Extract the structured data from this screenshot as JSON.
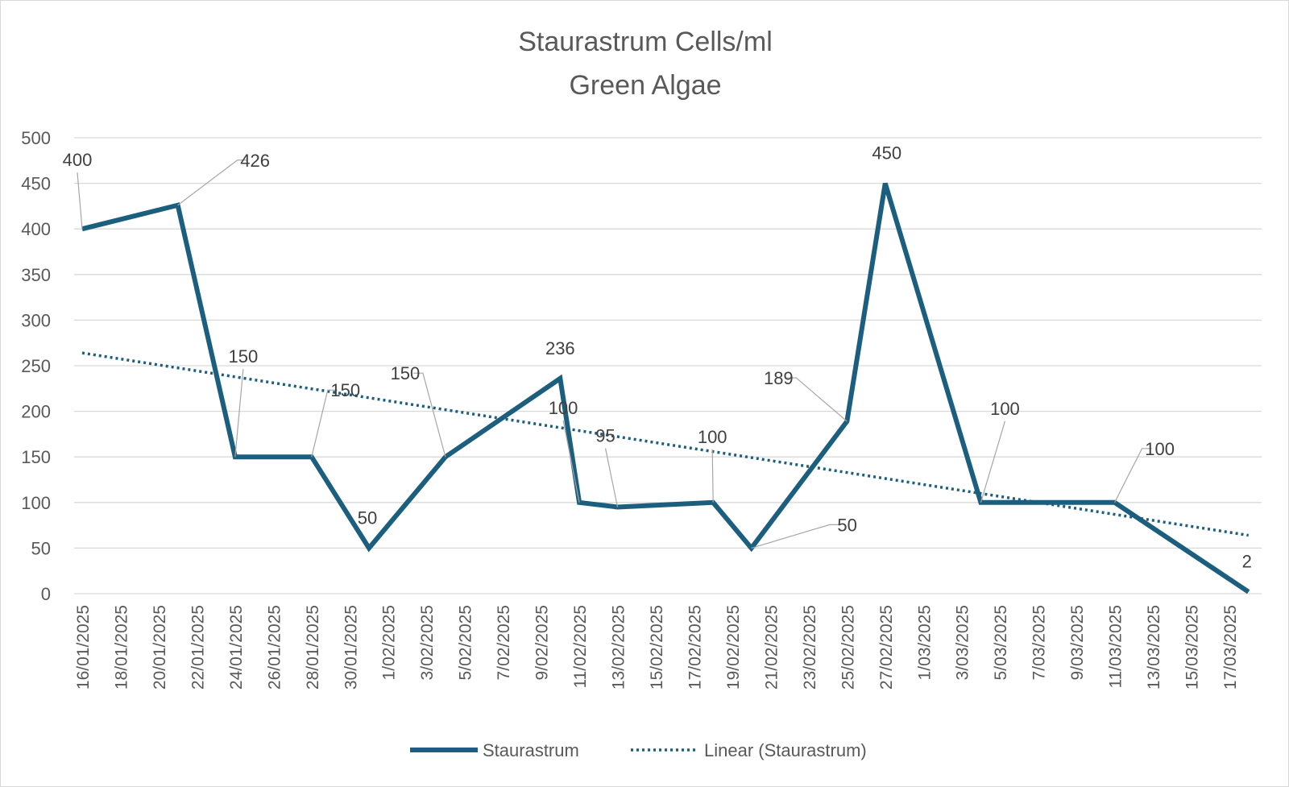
{
  "chart_data": {
    "type": "line",
    "title": [
      "Staurastrum Cells/ml",
      "Green Algae"
    ],
    "xlabel": "",
    "ylabel": "",
    "ylim": [
      0,
      500
    ],
    "yticks": [
      "0",
      "50",
      "100",
      "150",
      "200",
      "250",
      "300",
      "350",
      "400",
      "450",
      "500"
    ],
    "grid": true,
    "legend_position": "bottom",
    "color": "#1b5e7e",
    "x_tick_labels": [
      "16/01/2025",
      "18/01/2025",
      "20/01/2025",
      "22/01/2025",
      "24/01/2025",
      "26/01/2025",
      "28/01/2025",
      "30/01/2025",
      "1/02/2025",
      "3/02/2025",
      "5/02/2025",
      "7/02/2025",
      "9/02/2025",
      "11/02/2025",
      "13/02/2025",
      "15/02/2025",
      "17/02/2025",
      "19/02/2025",
      "21/02/2025",
      "23/02/2025",
      "25/02/2025",
      "27/02/2025",
      "1/03/2025",
      "3/03/2025",
      "5/03/2025",
      "7/03/2025",
      "9/03/2025",
      "11/03/2025",
      "13/03/2025",
      "15/03/2025",
      "17/03/2025"
    ],
    "series": [
      {
        "name": "Staurastrum",
        "x": [
          "16/01/2025",
          "21/01/2025",
          "24/01/2025",
          "28/01/2025",
          "31/01/2025",
          "4/02/2025",
          "10/02/2025",
          "11/02/2025",
          "13/02/2025",
          "18/02/2025",
          "20/02/2025",
          "25/02/2025",
          "27/02/2025",
          "4/03/2025",
          "11/03/2025",
          "18/03/2025"
        ],
        "values": [
          400,
          426,
          150,
          150,
          50,
          150,
          236,
          100,
          95,
          100,
          50,
          189,
          450,
          100,
          100,
          2
        ],
        "data_labels": [
          "400",
          "426",
          "150",
          "150",
          "50",
          "150",
          "236",
          "100",
          "95",
          "100",
          "50",
          "189",
          "450",
          "100",
          "100",
          "2"
        ]
      },
      {
        "name": "Linear (Staurastrum)",
        "type": "trendline-linear",
        "x": [
          "16/01/2025",
          "18/03/2025"
        ],
        "values": [
          264,
          64
        ]
      }
    ]
  }
}
